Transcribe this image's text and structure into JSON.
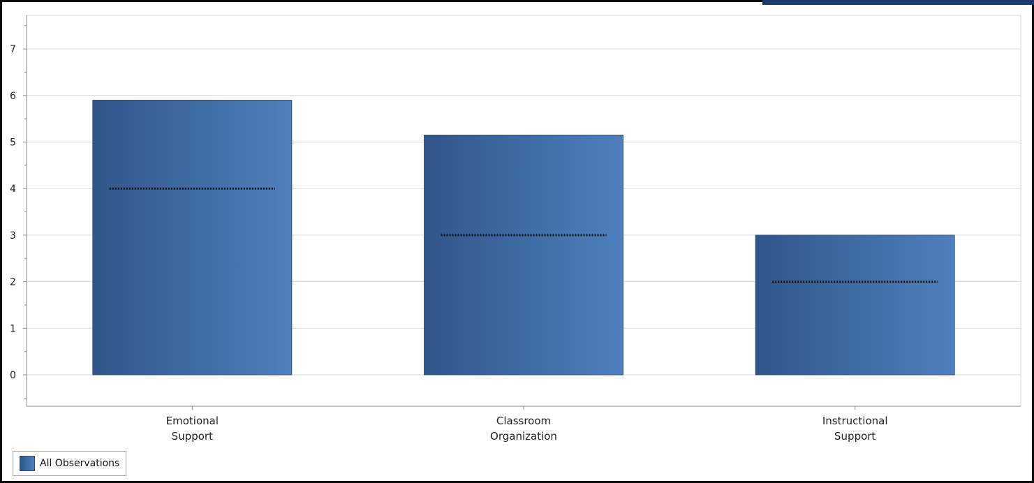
{
  "chart_data": {
    "type": "bar",
    "categories": [
      [
        "Emotional",
        "Support"
      ],
      [
        "Classroom",
        "Organization"
      ],
      [
        "Instructional",
        "Support"
      ]
    ],
    "series": [
      {
        "name": "All Observations",
        "values": [
          5.9,
          5.15,
          3.0
        ]
      }
    ],
    "reference_lines": [
      4.0,
      3.0,
      2.0
    ],
    "ylim": [
      0,
      7
    ],
    "yticks": [
      "0",
      "1",
      "2",
      "3",
      "4",
      "5",
      "6",
      "7"
    ],
    "grid": true,
    "legend_position": "bottom-left",
    "colors": {
      "bar_dark": "#30568a",
      "bar_light": "#4f80bd",
      "reference_line": "#111111",
      "grid": "#d9d9d9",
      "axis": "#8c8c8c",
      "frame": "#0a0a0a",
      "corner_tab": "#1e3a6b"
    }
  },
  "legend": {
    "label": "All Observations"
  }
}
